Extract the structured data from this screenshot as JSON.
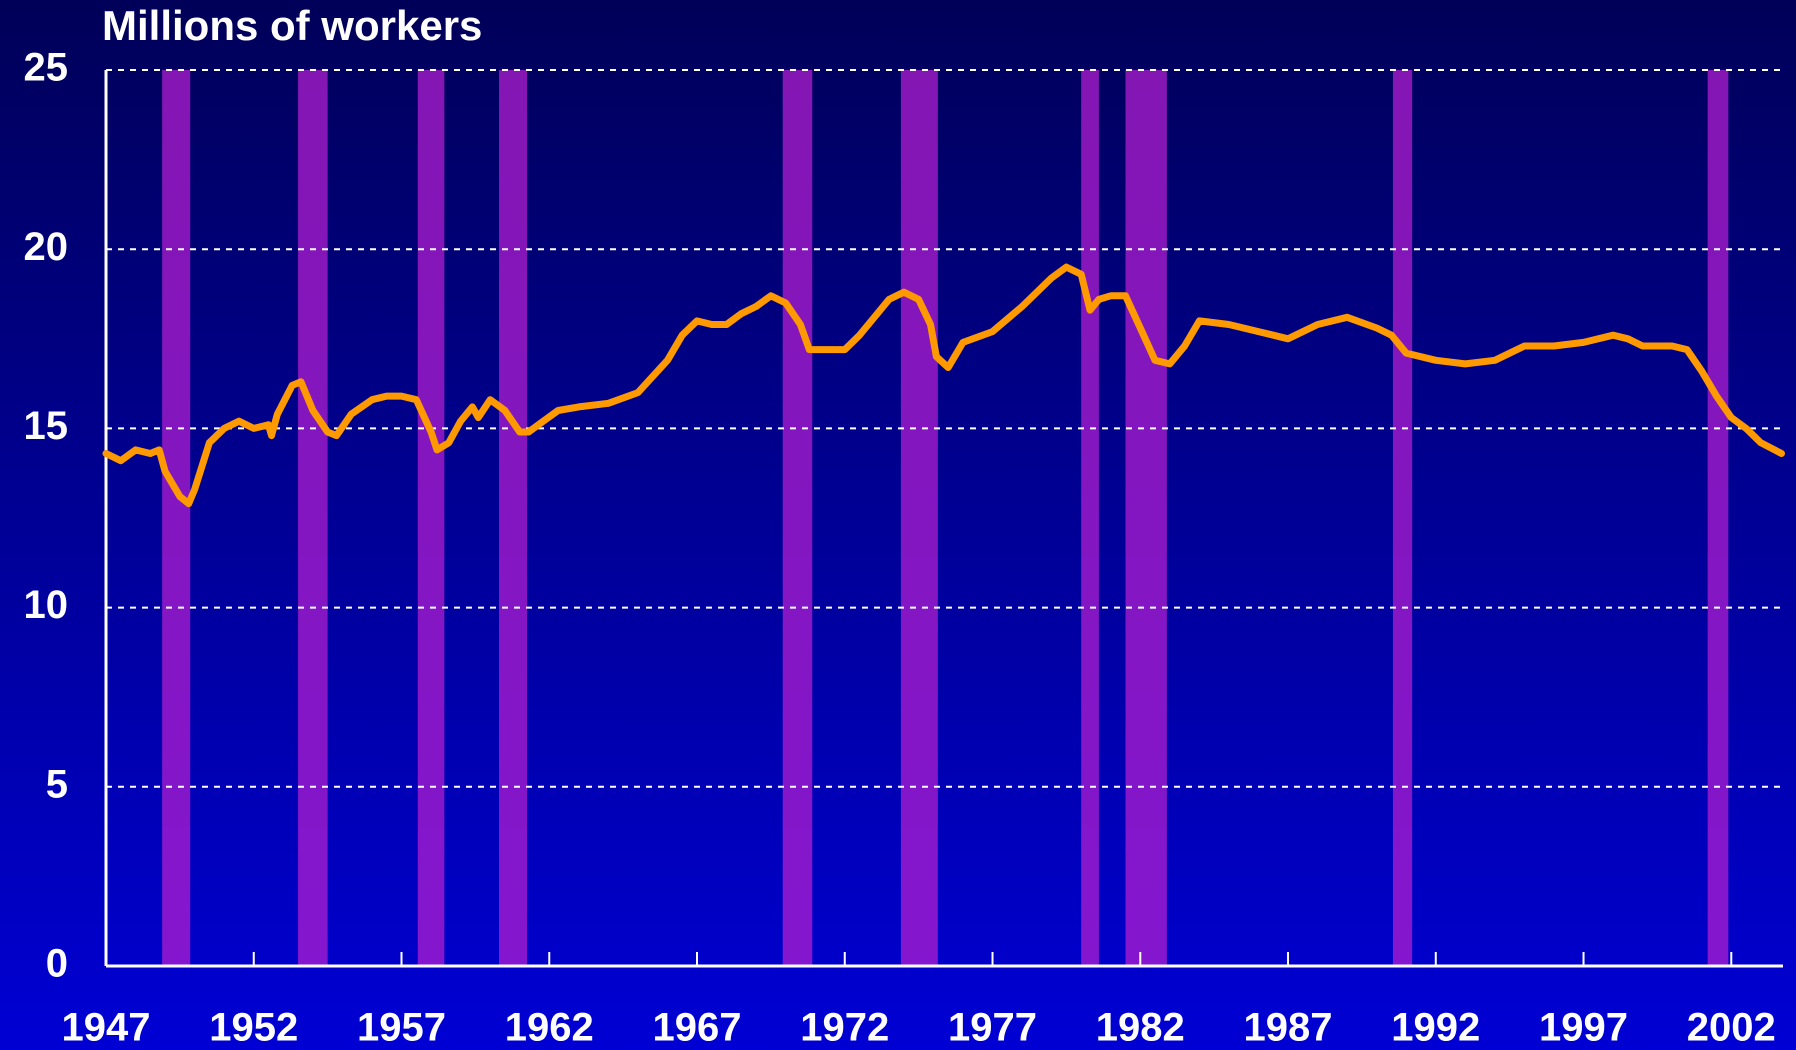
{
  "chart_data": {
    "type": "line",
    "title": "Millions of workers",
    "x": [
      1947,
      1947.5,
      1948,
      1948.5,
      1948.8,
      1949,
      1949.5,
      1949.8,
      1950,
      1950.5,
      1951,
      1951.5,
      1952,
      1952.5,
      1952.6,
      1952.8,
      1953.3,
      1953.6,
      1954,
      1954.5,
      1954.8,
      1955.3,
      1956,
      1956.5,
      1957,
      1957.5,
      1958,
      1958.2,
      1958.6,
      1959,
      1959.4,
      1959.6,
      1960,
      1960.5,
      1961,
      1961.3,
      1961.8,
      1962.3,
      1963,
      1964,
      1965,
      1966,
      1966.5,
      1967,
      1967.5,
      1968,
      1968.5,
      1969,
      1969.5,
      1970,
      1970.5,
      1970.8,
      1971.3,
      1972,
      1972.5,
      1973,
      1973.5,
      1974,
      1974.5,
      1974.9,
      1975.1,
      1975.5,
      1976,
      1977,
      1978,
      1979,
      1979.5,
      1980,
      1980.3,
      1980.6,
      1981,
      1981.5,
      1982,
      1982.5,
      1983,
      1983.5,
      1984,
      1985,
      1986,
      1987,
      1988,
      1989,
      1990,
      1990.5,
      1991,
      1992,
      1993,
      1994,
      1995,
      1996,
      1997,
      1998,
      1998.5,
      1999,
      2000,
      2000.5,
      2001,
      2001.5,
      2002,
      2002.5,
      2003,
      2003.7
    ],
    "values": [
      14.3,
      14.1,
      14.4,
      14.3,
      14.4,
      13.8,
      13.1,
      12.9,
      13.3,
      14.6,
      15.0,
      15.2,
      15.0,
      15.1,
      14.8,
      15.4,
      16.2,
      16.3,
      15.5,
      14.9,
      14.8,
      15.4,
      15.8,
      15.9,
      15.9,
      15.8,
      14.9,
      14.4,
      14.6,
      15.2,
      15.6,
      15.3,
      15.8,
      15.5,
      14.9,
      14.9,
      15.2,
      15.5,
      15.6,
      15.7,
      16.0,
      16.9,
      17.6,
      18.0,
      17.9,
      17.9,
      18.2,
      18.4,
      18.7,
      18.5,
      17.9,
      17.2,
      17.2,
      17.2,
      17.6,
      18.1,
      18.6,
      18.8,
      18.6,
      17.9,
      17.0,
      16.7,
      17.4,
      17.7,
      18.4,
      19.2,
      19.5,
      19.3,
      18.3,
      18.6,
      18.7,
      18.7,
      17.8,
      16.9,
      16.8,
      17.3,
      18.0,
      17.9,
      17.7,
      17.5,
      17.9,
      18.1,
      17.8,
      17.6,
      17.1,
      16.9,
      16.8,
      16.9,
      17.3,
      17.3,
      17.4,
      17.6,
      17.5,
      17.3,
      17.3,
      17.2,
      16.6,
      15.9,
      15.3,
      15.0,
      14.6,
      14.3
    ],
    "color": "#ff9900",
    "shaded_regions": [
      [
        1948.9,
        1949.85
      ],
      [
        1953.5,
        1954.5
      ],
      [
        1957.55,
        1958.45
      ],
      [
        1960.3,
        1961.25
      ],
      [
        1969.9,
        1970.9
      ],
      [
        1973.9,
        1975.15
      ],
      [
        1980.0,
        1980.6
      ],
      [
        1981.5,
        1982.9
      ],
      [
        1990.55,
        1991.2
      ],
      [
        2001.2,
        2001.9
      ]
    ],
    "shade_color": "#b01ed0",
    "xlim": [
      1947,
      2003.75
    ],
    "xticks": [
      1947,
      1952,
      1957,
      1962,
      1967,
      1972,
      1977,
      1982,
      1987,
      1992,
      1997,
      2002
    ],
    "ylim": [
      0,
      25
    ],
    "yticks": [
      0,
      5,
      10,
      15,
      20,
      25
    ],
    "grid": true
  }
}
